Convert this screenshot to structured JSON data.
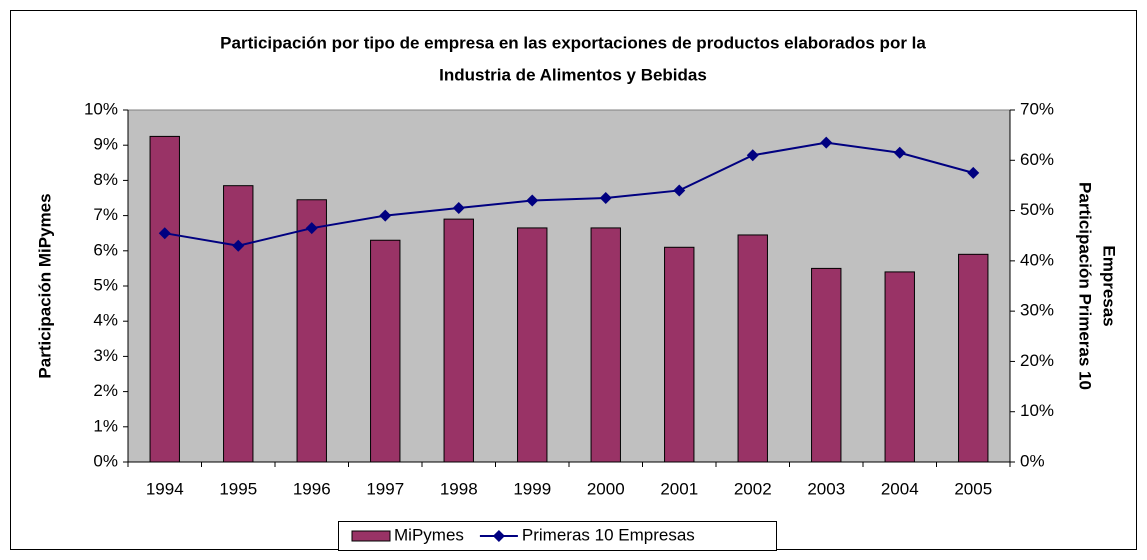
{
  "chart_data": {
    "type": "bar",
    "title": [
      "Participación por tipo de empresa en las exportaciones de productos elaborados por la",
      "Industria de Alimentos y Bebidas"
    ],
    "ylabel": "Participación MiPymes",
    "y2label": [
      "Participación Primeras 10",
      "Empresas"
    ],
    "categories": [
      "1994",
      "1995",
      "1996",
      "1997",
      "1998",
      "1999",
      "2000",
      "2001",
      "2002",
      "2003",
      "2004",
      "2005"
    ],
    "series": [
      {
        "name": "MiPymes",
        "type": "bar",
        "color": "#993366",
        "values": [
          9.25,
          7.85,
          7.45,
          6.3,
          6.9,
          6.65,
          6.65,
          6.1,
          6.45,
          5.5,
          5.4,
          5.9
        ]
      },
      {
        "name": "Primeras 10 Empresas",
        "type": "line",
        "axis": "y2",
        "color": "#000080",
        "values": [
          45.5,
          43,
          46.5,
          49,
          50.5,
          52,
          52.5,
          54,
          61,
          63.5,
          61.5,
          57.5
        ]
      }
    ],
    "ylim": [
      0,
      10
    ],
    "yticks": [
      {
        "value": 0,
        "label": "0%"
      },
      {
        "value": 1,
        "label": "1%"
      },
      {
        "value": 2,
        "label": "2%"
      },
      {
        "value": 3,
        "label": "3%"
      },
      {
        "value": 4,
        "label": "4%"
      },
      {
        "value": 5,
        "label": "5%"
      },
      {
        "value": 6,
        "label": "6%"
      },
      {
        "value": 7,
        "label": "7%"
      },
      {
        "value": 8,
        "label": "8%"
      },
      {
        "value": 9,
        "label": "9%"
      },
      {
        "value": 10,
        "label": "10%"
      }
    ],
    "y2lim": [
      0,
      70
    ],
    "y2ticks": [
      {
        "value": 0,
        "label": "0%"
      },
      {
        "value": 10,
        "label": "10%"
      },
      {
        "value": 20,
        "label": "20%"
      },
      {
        "value": 30,
        "label": "30%"
      },
      {
        "value": 40,
        "label": "40%"
      },
      {
        "value": 50,
        "label": "50%"
      },
      {
        "value": 60,
        "label": "60%"
      },
      {
        "value": 70,
        "label": "70%"
      }
    ],
    "grid": false,
    "legend": "bottom",
    "plot_background": "#c0c0c0"
  }
}
